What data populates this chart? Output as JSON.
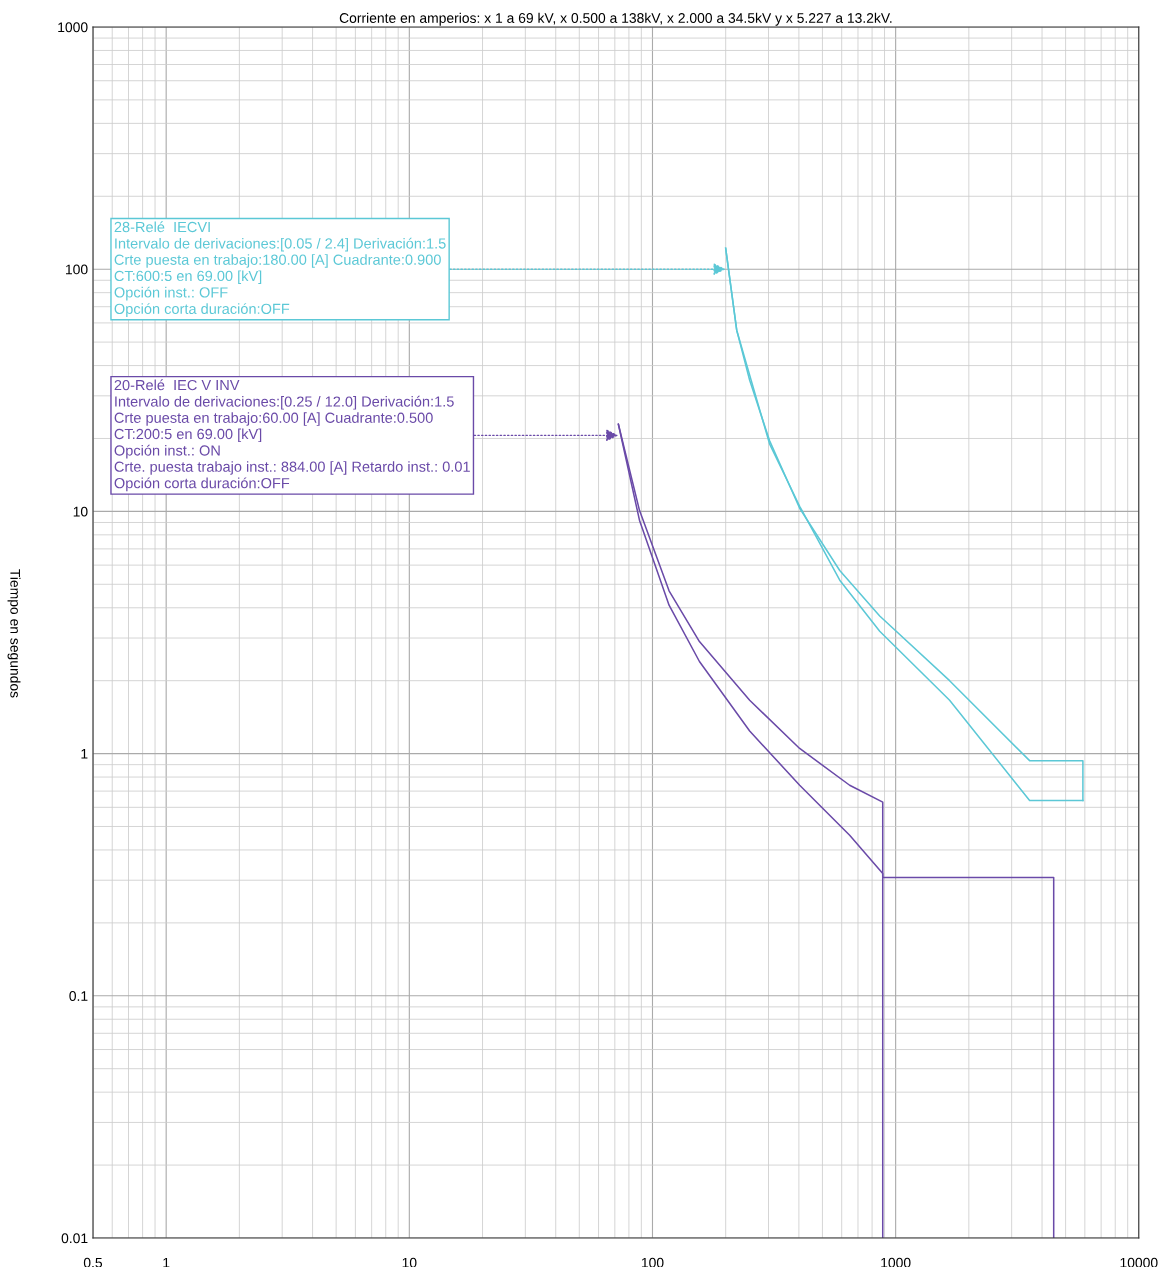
{
  "chart_data": {
    "type": "line",
    "title": "Corriente en amperios: x 1 a 69 kV, x 0.500 a 138kV, x 2.000 a 34.5kV y x 5.227 a 13.2kV.",
    "ylabel": "Tiempo en segundos",
    "log": "xy",
    "grid": true,
    "marker": "none",
    "line_style": "solid",
    "xlim": [
      0.5,
      10000
    ],
    "xticks": [
      0.5,
      1,
      10,
      100,
      1000,
      10000
    ],
    "ylim": [
      0.01,
      1000
    ],
    "yticks": [
      0.01,
      0.1,
      1,
      10,
      100,
      1000
    ],
    "series": [
      {
        "color": "#5bc8d6",
        "x": [
          200,
          222,
          251,
          303,
          403,
          589,
          860,
          1667,
          3556,
          5890,
          5890
        ],
        "values": [
          122,
          56,
          34.8,
          19.6,
          10.3,
          5.7,
          3.7,
          2.0,
          0.935,
          0.935,
          0.64
        ]
      },
      {
        "color": "#5bc8d6",
        "x": [
          200,
          222,
          303,
          403,
          589,
          860,
          1667,
          3556,
          5890
        ],
        "values": [
          122,
          56,
          19,
          10.5,
          5.2,
          3.2,
          1.66,
          0.64,
          0.64
        ]
      },
      {
        "color": "#6a4aa8",
        "x": [
          72.4,
          88.4,
          117,
          156,
          251,
          403,
          647,
          885,
          885
        ],
        "values": [
          22.9,
          10.1,
          4.7,
          2.9,
          1.66,
          1.05,
          0.74,
          0.63,
          0.01
        ]
      },
      {
        "color": "#6a4aa8",
        "x": [
          72.4,
          88.4,
          117,
          156,
          251,
          403,
          647,
          885,
          885,
          4467,
          4467
        ],
        "values": [
          22.9,
          9.2,
          4.1,
          2.4,
          1.24,
          0.74,
          0.46,
          0.32,
          0.308,
          0.308,
          0.01
        ]
      }
    ],
    "annotations": [
      {
        "text": "28-Relé  IECVI\nIntervalo de derivaciones:[0.05 / 2.4] Derivación:1.5\nCrte puesta en trabajo:180.00 [A] Cuadrante:0.900\nCT:600:5 en 69.00 [kV]\nOpción inst.: OFF\nOpción corta duración:OFF",
        "x": 200,
        "y": 100
      },
      {
        "text": "20-Relé  IEC V INV\nIntervalo de derivaciones:[0.25 / 12.0] Derivación:1.5\nCrte puesta en trabajo:60.00 [A] Cuadrante:0.500\nCT:200:5 en 69.00 [kV]\nOpción inst.: ON\nCrte. puesta trabajo inst.: 884.00 [A] Retardo inst.: 0.01\nOpción corta duración:OFF",
        "x": 72.4,
        "y": 20.6
      }
    ]
  }
}
